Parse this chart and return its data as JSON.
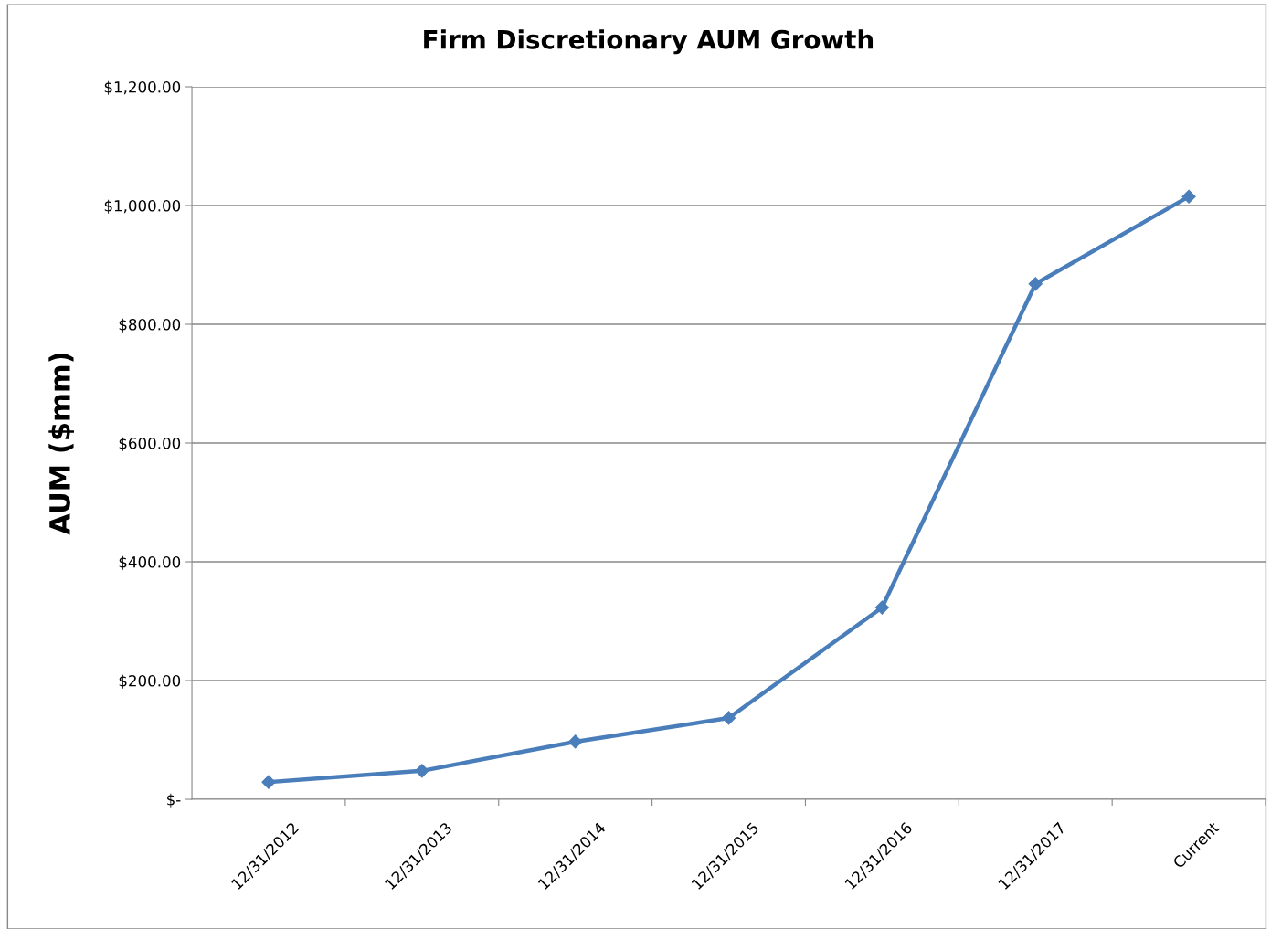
{
  "chart_data": {
    "type": "line",
    "title": "Firm Discretionary AUM Growth",
    "ylabel": "AUM ($mm)",
    "categories": [
      "12/31/2012",
      "12/31/2013",
      "12/31/2014",
      "12/31/2015",
      "12/31/2016",
      "12/31/2017",
      "Current"
    ],
    "series": [
      {
        "color": "#4a7ebb",
        "values": [
          29,
          48,
          97,
          137,
          323,
          868,
          1015
        ]
      }
    ],
    "ylim": [
      0,
      1200
    ],
    "yticks": [
      {
        "value": 0,
        "label": "$-"
      },
      {
        "value": 200,
        "label": "$200.00"
      },
      {
        "value": 400,
        "label": "$400.00"
      },
      {
        "value": 600,
        "label": "$600.00"
      },
      {
        "value": 800,
        "label": "$800.00"
      },
      {
        "value": 1000,
        "label": "$1,000.00"
      },
      {
        "value": 1200,
        "label": "$1,200.00"
      }
    ],
    "grid": "y",
    "marker": "diamond",
    "line_style": "solid",
    "legend": false
  }
}
